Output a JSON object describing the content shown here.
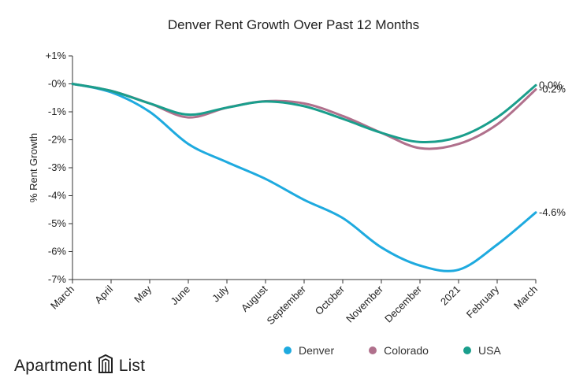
{
  "chart_data": {
    "type": "line",
    "title": "Denver Rent Growth Over Past 12 Months",
    "ylabel": "% Rent Growth",
    "xlabel": "",
    "categories": [
      "March",
      "April",
      "May",
      "June",
      "July",
      "August",
      "September",
      "October",
      "November",
      "December",
      "2021",
      "February",
      "March"
    ],
    "ylim": [
      -7,
      1
    ],
    "yticks": [
      1,
      0,
      -1,
      -2,
      -3,
      -4,
      -5,
      -6,
      -7
    ],
    "ytick_labels": [
      "+1%",
      "-0%",
      "-1%",
      "-2%",
      "-3%",
      "-4%",
      "-5%",
      "-6%",
      "-7%"
    ],
    "series": [
      {
        "name": "Denver",
        "color": "#1eaadf",
        "values": [
          0,
          -0.3,
          -1.0,
          -2.15,
          -2.8,
          -3.4,
          -4.15,
          -4.8,
          -5.85,
          -6.5,
          -6.65,
          -5.75,
          -4.6
        ],
        "end_label": "-4.6%"
      },
      {
        "name": "Colorado",
        "color": "#b0708c",
        "values": [
          0,
          -0.25,
          -0.7,
          -1.2,
          -0.85,
          -0.62,
          -0.7,
          -1.15,
          -1.75,
          -2.3,
          -2.15,
          -1.45,
          -0.2
        ],
        "end_label": "-0.2%"
      },
      {
        "name": "USA",
        "color": "#1a9e8c",
        "values": [
          0,
          -0.25,
          -0.7,
          -1.1,
          -0.85,
          -0.63,
          -0.8,
          -1.25,
          -1.75,
          -2.08,
          -1.9,
          -1.2,
          -0.05
        ],
        "end_label": "0.0%"
      }
    ],
    "grid": false,
    "legend_position": "bottom-right"
  },
  "legend": [
    {
      "name": "Denver",
      "color": "#1eaadf"
    },
    {
      "name": "Colorado",
      "color": "#b0708c"
    },
    {
      "name": "USA",
      "color": "#1a9e8c"
    }
  ],
  "brand": {
    "left": "Apartment",
    "right": "List",
    "icon": "apartment-list-logo-icon"
  }
}
